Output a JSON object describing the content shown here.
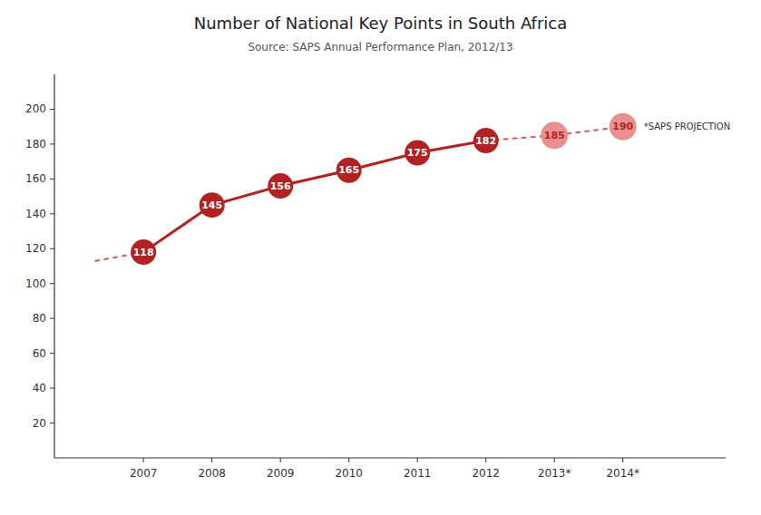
{
  "chart_data": {
    "type": "line",
    "title": "Number of National Key Points in South Africa",
    "subtitle": "Source: SAPS Annual Performance Plan, 2012/13",
    "annotations": [
      "*SAPS PROJECTION"
    ],
    "x": [
      2006.3,
      2007,
      2008,
      2009,
      2010,
      2011,
      2012,
      2013,
      2014
    ],
    "series": [
      {
        "color": "#CD5C5C",
        "line_style": "dashed",
        "values": [
          113,
          118,
          null,
          null,
          null,
          null,
          182,
          185,
          190
        ]
      },
      {
        "color": "#B22222",
        "line_style": "solid",
        "marker": "circle",
        "values": [
          null,
          118,
          145,
          156,
          165,
          175,
          182,
          null,
          null
        ]
      },
      {
        "color": "#E89090",
        "line_style": "none",
        "marker": "circle",
        "values": [
          null,
          null,
          null,
          null,
          null,
          null,
          null,
          185,
          190
        ]
      }
    ],
    "xlim": [
      2005.7,
      2015.5
    ],
    "xticks": [
      2007,
      2008,
      2009,
      2010,
      2011,
      2012,
      {
        "value": 2013,
        "label": "2013*"
      },
      {
        "value": 2014,
        "label": "2014*"
      }
    ],
    "ylim": [
      0,
      220
    ],
    "yticks": [
      20,
      40,
      60,
      80,
      100,
      120,
      140,
      160,
      180,
      200
    ],
    "grid": false,
    "data_labels": true
  }
}
